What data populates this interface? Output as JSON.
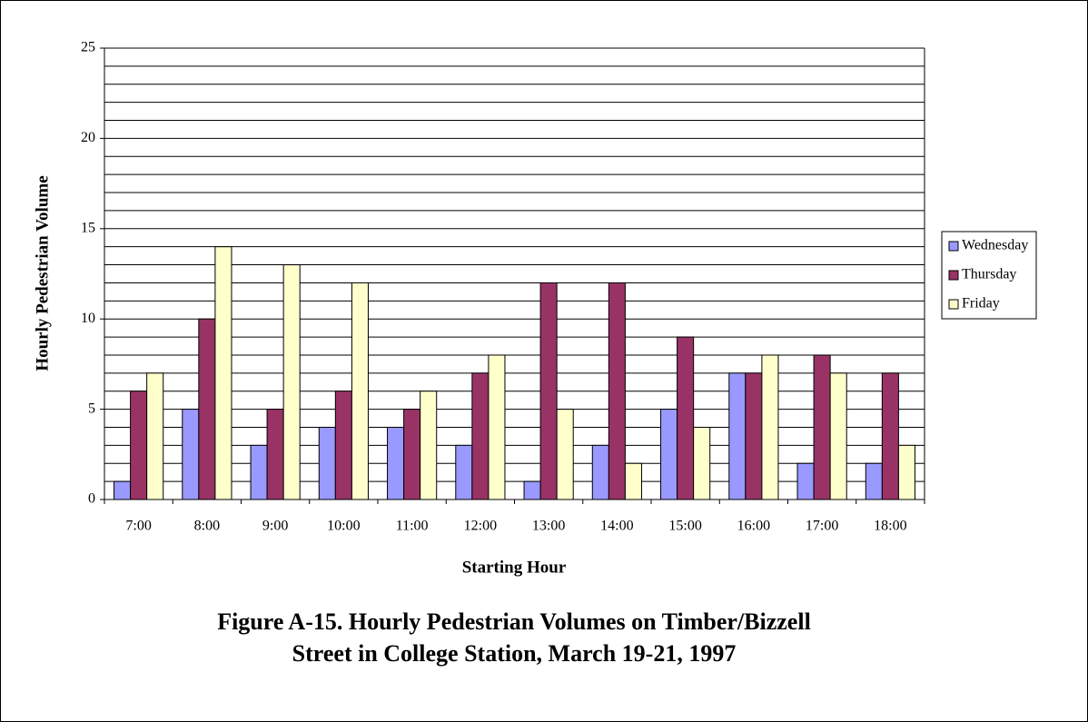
{
  "chart_data": {
    "type": "bar",
    "title": "Figure A-15.  Hourly Pedestrian Volumes on Timber/Bizzell",
    "subtitle": "Street in College Station, March 19-21, 1997",
    "x_label": "Starting Hour",
    "y_label": "Hourly Pedestrian Volume",
    "categories": [
      "7:00",
      "8:00",
      "9:00",
      "10:00",
      "11:00",
      "12:00",
      "13:00",
      "14:00",
      "15:00",
      "16:00",
      "17:00",
      "18:00"
    ],
    "series": [
      {
        "name": "Wednesday",
        "color": "#9999ff",
        "values": [
          1,
          5,
          3,
          4,
          4,
          3,
          1,
          3,
          5,
          7,
          2,
          2
        ]
      },
      {
        "name": "Thursday",
        "color": "#993366",
        "values": [
          6,
          10,
          5,
          6,
          5,
          7,
          12,
          12,
          9,
          7,
          8,
          7
        ]
      },
      {
        "name": "Friday",
        "color": "#ffffcc",
        "values": [
          7,
          14,
          13,
          12,
          6,
          8,
          5,
          2,
          4,
          8,
          7,
          3
        ]
      }
    ],
    "ylim": [
      0,
      25
    ],
    "yticks": [
      0,
      5,
      10,
      15,
      20,
      25
    ],
    "yminorticks": [
      1,
      2,
      3,
      4,
      6,
      7,
      8,
      9,
      11,
      12,
      13,
      14,
      16,
      17,
      18,
      19,
      21,
      22,
      23,
      24
    ],
    "grid": true,
    "legend": "right"
  }
}
